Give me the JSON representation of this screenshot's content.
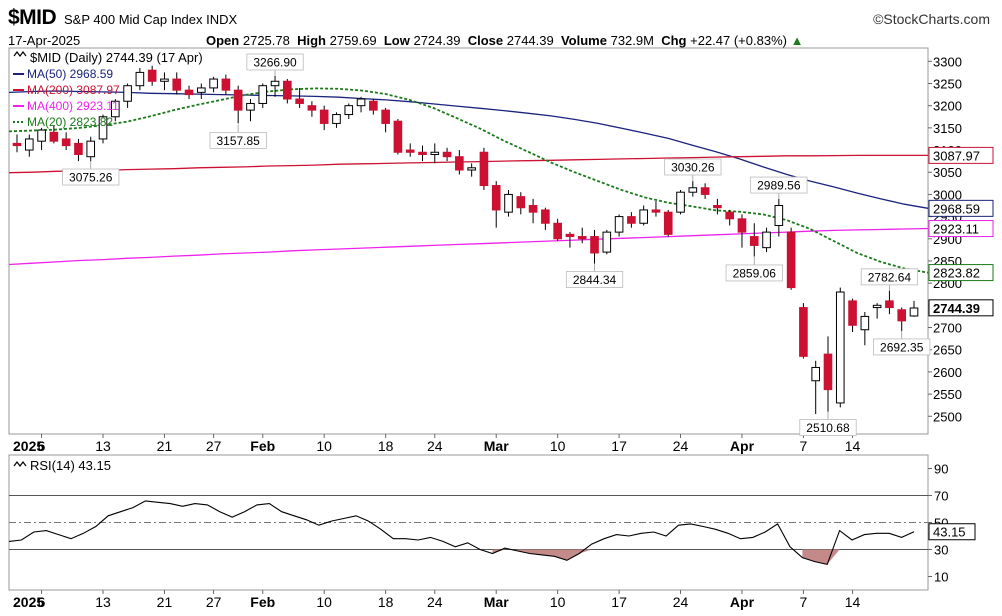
{
  "header": {
    "symbol": "$MID",
    "name": "S&P 400 Mid Cap Index INDX",
    "brand": "©StockCharts.com",
    "date": "17-Apr-2025",
    "open_label": "Open",
    "open": "2725.78",
    "high_label": "High",
    "high": "2759.69",
    "low_label": "Low",
    "low": "2724.39",
    "close_label": "Close",
    "close": "2744.39",
    "volume_label": "Volume",
    "volume": "732.9M",
    "chg_label": "Chg",
    "chg": "+22.47 (+0.83%)"
  },
  "legend": {
    "main": "$MID (Daily) 2744.39 (17 Apr)",
    "items": [
      {
        "label": "MA(50) 2968.59",
        "color": "#1a237e"
      },
      {
        "label": "MA(200) 3087.97",
        "color": "#cc1133"
      },
      {
        "label": "MA(400) 2923.11",
        "color": "#ee22ee"
      },
      {
        "label": "MA(20) 2823.82",
        "color": "#1a7a1a"
      }
    ],
    "rsi": "RSI(14) 43.15"
  },
  "colors": {
    "up": "#ffffff",
    "down": "#cc1133",
    "ma50": "#1a237e",
    "ma200": "#cc1133",
    "ma400": "#ee22ee",
    "ma20": "#1a7a1a",
    "rsi_fill": "#c48a8a"
  },
  "chart_data": [
    {
      "type": "candlestick",
      "x_ticks": [
        "2025",
        "6",
        "13",
        "21",
        "27",
        "Feb",
        "10",
        "18",
        "24",
        "Mar",
        "10",
        "17",
        "24",
        "Apr",
        "7",
        "14"
      ],
      "y_ticks": [
        2500,
        2550,
        2600,
        2650,
        2700,
        2750,
        2800,
        2850,
        2900,
        2950,
        3000,
        3050,
        3100,
        3150,
        3200,
        3250,
        3300
      ],
      "ylim": [
        2460,
        3330
      ],
      "candles": [
        {
          "o": 3115,
          "h": 3135,
          "l": 3095,
          "c": 3110
        },
        {
          "o": 3100,
          "h": 3135,
          "l": 3085,
          "c": 3125
        },
        {
          "o": 3120,
          "h": 3150,
          "l": 3100,
          "c": 3145
        },
        {
          "o": 3140,
          "h": 3155,
          "l": 3115,
          "c": 3120
        },
        {
          "o": 3125,
          "h": 3140,
          "l": 3100,
          "c": 3110
        },
        {
          "o": 3115,
          "h": 3125,
          "l": 3075,
          "c": 3090
        },
        {
          "o": 3085,
          "h": 3130,
          "l": 3075,
          "c": 3120
        },
        {
          "o": 3125,
          "h": 3180,
          "l": 3115,
          "c": 3175
        },
        {
          "o": 3175,
          "h": 3215,
          "l": 3165,
          "c": 3210
        },
        {
          "o": 3210,
          "h": 3250,
          "l": 3195,
          "c": 3245
        },
        {
          "o": 3245,
          "h": 3285,
          "l": 3235,
          "c": 3275
        },
        {
          "o": 3280,
          "h": 3290,
          "l": 3245,
          "c": 3255
        },
        {
          "o": 3255,
          "h": 3275,
          "l": 3235,
          "c": 3260
        },
        {
          "o": 3260,
          "h": 3275,
          "l": 3225,
          "c": 3235
        },
        {
          "o": 3235,
          "h": 3245,
          "l": 3215,
          "c": 3225
        },
        {
          "o": 3230,
          "h": 3250,
          "l": 3215,
          "c": 3240
        },
        {
          "o": 3240,
          "h": 3265,
          "l": 3230,
          "c": 3260
        },
        {
          "o": 3260,
          "h": 3270,
          "l": 3225,
          "c": 3235
        },
        {
          "o": 3235,
          "h": 3245,
          "l": 3160,
          "c": 3190
        },
        {
          "o": 3190,
          "h": 3215,
          "l": 3165,
          "c": 3205
        },
        {
          "o": 3205,
          "h": 3250,
          "l": 3195,
          "c": 3245
        },
        {
          "o": 3245,
          "h": 3267,
          "l": 3220,
          "c": 3255
        },
        {
          "o": 3255,
          "h": 3260,
          "l": 3205,
          "c": 3215
        },
        {
          "o": 3215,
          "h": 3240,
          "l": 3195,
          "c": 3205
        },
        {
          "o": 3200,
          "h": 3210,
          "l": 3175,
          "c": 3190
        },
        {
          "o": 3190,
          "h": 3200,
          "l": 3145,
          "c": 3160
        },
        {
          "o": 3160,
          "h": 3185,
          "l": 3150,
          "c": 3180
        },
        {
          "o": 3180,
          "h": 3205,
          "l": 3170,
          "c": 3200
        },
        {
          "o": 3200,
          "h": 3220,
          "l": 3185,
          "c": 3215
        },
        {
          "o": 3210,
          "h": 3215,
          "l": 3180,
          "c": 3190
        },
        {
          "o": 3190,
          "h": 3195,
          "l": 3140,
          "c": 3160
        },
        {
          "o": 3165,
          "h": 3170,
          "l": 3090,
          "c": 3095
        },
        {
          "o": 3100,
          "h": 3115,
          "l": 3085,
          "c": 3095
        },
        {
          "o": 3095,
          "h": 3110,
          "l": 3075,
          "c": 3090
        },
        {
          "o": 3090,
          "h": 3115,
          "l": 3070,
          "c": 3095
        },
        {
          "o": 3095,
          "h": 3105,
          "l": 3075,
          "c": 3085
        },
        {
          "o": 3085,
          "h": 3100,
          "l": 3045,
          "c": 3055
        },
        {
          "o": 3055,
          "h": 3070,
          "l": 3040,
          "c": 3060
        },
        {
          "o": 3095,
          "h": 3105,
          "l": 3010,
          "c": 3020
        },
        {
          "o": 3020,
          "h": 3030,
          "l": 2925,
          "c": 2965
        },
        {
          "o": 2960,
          "h": 3010,
          "l": 2950,
          "c": 3000
        },
        {
          "o": 2995,
          "h": 3005,
          "l": 2955,
          "c": 2970
        },
        {
          "o": 2975,
          "h": 2990,
          "l": 2935,
          "c": 2960
        },
        {
          "o": 2965,
          "h": 2970,
          "l": 2920,
          "c": 2935
        },
        {
          "o": 2935,
          "h": 2945,
          "l": 2895,
          "c": 2900
        },
        {
          "o": 2910,
          "h": 2915,
          "l": 2880,
          "c": 2905
        },
        {
          "o": 2905,
          "h": 2925,
          "l": 2890,
          "c": 2900
        },
        {
          "o": 2905,
          "h": 2920,
          "l": 2844,
          "c": 2868
        },
        {
          "o": 2870,
          "h": 2920,
          "l": 2865,
          "c": 2915
        },
        {
          "o": 2915,
          "h": 2955,
          "l": 2905,
          "c": 2950
        },
        {
          "o": 2950,
          "h": 2960,
          "l": 2925,
          "c": 2935
        },
        {
          "o": 2935,
          "h": 2975,
          "l": 2930,
          "c": 2965
        },
        {
          "o": 2965,
          "h": 2985,
          "l": 2950,
          "c": 2960
        },
        {
          "o": 2960,
          "h": 2965,
          "l": 2905,
          "c": 2910
        },
        {
          "o": 2960,
          "h": 3010,
          "l": 2955,
          "c": 3005
        },
        {
          "o": 3005,
          "h": 3030,
          "l": 2995,
          "c": 3015
        },
        {
          "o": 3015,
          "h": 3025,
          "l": 2990,
          "c": 3000
        },
        {
          "o": 2975,
          "h": 2990,
          "l": 2955,
          "c": 2970
        },
        {
          "o": 2960,
          "h": 2965,
          "l": 2930,
          "c": 2945
        },
        {
          "o": 2945,
          "h": 2955,
          "l": 2880,
          "c": 2915
        },
        {
          "o": 2905,
          "h": 2935,
          "l": 2860,
          "c": 2885
        },
        {
          "o": 2880,
          "h": 2925,
          "l": 2870,
          "c": 2915
        },
        {
          "o": 2930,
          "h": 2990,
          "l": 2905,
          "c": 2975
        },
        {
          "o": 2915,
          "h": 2925,
          "l": 2785,
          "c": 2790
        },
        {
          "o": 2745,
          "h": 2755,
          "l": 2630,
          "c": 2635
        },
        {
          "o": 2580,
          "h": 2625,
          "l": 2505,
          "c": 2610
        },
        {
          "o": 2640,
          "h": 2680,
          "l": 2510,
          "c": 2560
        },
        {
          "o": 2530,
          "h": 2790,
          "l": 2520,
          "c": 2780
        },
        {
          "o": 2760,
          "h": 2765,
          "l": 2690,
          "c": 2705
        },
        {
          "o": 2695,
          "h": 2735,
          "l": 2660,
          "c": 2725
        },
        {
          "o": 2745,
          "h": 2755,
          "l": 2720,
          "c": 2750
        },
        {
          "o": 2760,
          "h": 2783,
          "l": 2730,
          "c": 2745
        },
        {
          "o": 2740,
          "h": 2745,
          "l": 2692,
          "c": 2715
        },
        {
          "o": 2726,
          "h": 2760,
          "l": 2724,
          "c": 2744
        }
      ],
      "series": [
        {
          "name": "MA(50)",
          "values": [
            3230,
            3232,
            3233,
            3232,
            3231,
            3230,
            3228,
            3227,
            3226,
            3225,
            3224,
            3223,
            3222,
            3221,
            3219,
            3216,
            3213,
            3209,
            3204,
            3199,
            3194,
            3189,
            3183,
            3177,
            3169,
            3160,
            3149,
            3138,
            3126,
            3111,
            3096,
            3080,
            3062,
            3045,
            3030,
            3017,
            3003,
            2990,
            2978,
            2968.59
          ]
        },
        {
          "name": "MA(200)",
          "values": [
            3049,
            3050,
            3052,
            3053,
            3054,
            3056,
            3057,
            3058,
            3060,
            3061,
            3062,
            3064,
            3065,
            3066,
            3068,
            3069,
            3070,
            3071,
            3072,
            3073,
            3074,
            3075,
            3076,
            3077,
            3078,
            3079,
            3080,
            3081,
            3082,
            3083,
            3084,
            3085,
            3086,
            3087,
            3087,
            3087.5,
            3088,
            3088,
            3088,
            3087.97
          ]
        },
        {
          "name": "MA(400)",
          "values": [
            2842,
            2845,
            2848,
            2851,
            2853,
            2856,
            2858,
            2861,
            2863,
            2866,
            2868,
            2870,
            2873,
            2875,
            2877,
            2879,
            2881,
            2883,
            2885,
            2887,
            2889,
            2891,
            2893,
            2895,
            2897,
            2899,
            2901,
            2903,
            2905,
            2907,
            2909,
            2911,
            2913,
            2915,
            2917,
            2919,
            2920,
            2921,
            2922,
            2923.11
          ]
        },
        {
          "name": "MA(20)",
          "values": [
            3142,
            3144,
            3146,
            3150,
            3156,
            3164,
            3176,
            3190,
            3202,
            3213,
            3224,
            3232,
            3237,
            3239,
            3238,
            3234,
            3226,
            3213,
            3195,
            3172,
            3148,
            3121,
            3097,
            3072,
            3050,
            3030,
            3010,
            2993,
            2981,
            2973,
            2964,
            2961,
            2955,
            2942,
            2922,
            2895,
            2868,
            2848,
            2833,
            2823.82
          ]
        }
      ],
      "ma_label_values": [
        {
          "text": "3087.97",
          "v": 3087.97,
          "color": "#cc1133"
        },
        {
          "text": "2968.59",
          "v": 2968.59,
          "color": "#1a237e"
        },
        {
          "text": "2923.11",
          "v": 2923.11,
          "color": "#ee22ee"
        },
        {
          "text": "2823.82",
          "v": 2823.82,
          "color": "#1a7a1a"
        },
        {
          "text": "2744.39",
          "v": 2744.39,
          "color": "#000000"
        }
      ],
      "annotations": [
        {
          "text": "3266.90",
          "i": 21,
          "v": 3266.9,
          "pos": "above"
        },
        {
          "text": "3157.85",
          "i": 18,
          "v": 3157.85,
          "pos": "below"
        },
        {
          "text": "3075.26",
          "i": 6,
          "v": 3075.26,
          "pos": "below"
        },
        {
          "text": "3030.26",
          "i": 55,
          "v": 3030.26,
          "pos": "above"
        },
        {
          "text": "2989.56",
          "i": 62,
          "v": 2989.56,
          "pos": "above"
        },
        {
          "text": "2844.34",
          "i": 47,
          "v": 2844.34,
          "pos": "below"
        },
        {
          "text": "2859.06",
          "i": 60,
          "v": 2859.06,
          "pos": "below"
        },
        {
          "text": "2782.64",
          "i": 71,
          "v": 2782.64,
          "pos": "above"
        },
        {
          "text": "2692.35",
          "i": 72,
          "v": 2692.35,
          "pos": "below"
        },
        {
          "text": "2510.68",
          "i": 66,
          "v": 2510.68,
          "pos": "below"
        }
      ]
    },
    {
      "type": "line",
      "title": "RSI(14) 43.15",
      "y_ticks": [
        10,
        30,
        50,
        70,
        90
      ],
      "ylim": [
        0,
        100
      ],
      "levels": [
        30,
        50,
        70
      ],
      "x_ticks": [
        "2025",
        "6",
        "13",
        "21",
        "27",
        "Feb",
        "10",
        "18",
        "24",
        "Mar",
        "10",
        "17",
        "24",
        "Apr",
        "7",
        "14"
      ],
      "values": [
        36,
        37,
        43,
        44,
        41,
        38,
        42,
        47,
        55,
        58,
        61,
        66,
        65,
        64,
        62,
        64,
        63,
        58,
        54,
        58,
        63,
        64,
        58,
        55,
        52,
        48,
        51,
        53,
        55,
        51,
        45,
        38,
        38,
        37,
        39,
        36,
        32,
        35,
        30,
        27,
        31,
        29,
        27,
        26,
        25,
        22,
        27,
        34,
        38,
        41,
        40,
        42,
        43,
        40,
        48,
        49,
        47,
        45,
        42,
        38,
        39,
        43,
        49,
        32,
        24,
        21,
        19,
        44,
        37,
        41,
        42,
        42,
        39,
        43.15
      ],
      "last_value": "43.15"
    }
  ]
}
